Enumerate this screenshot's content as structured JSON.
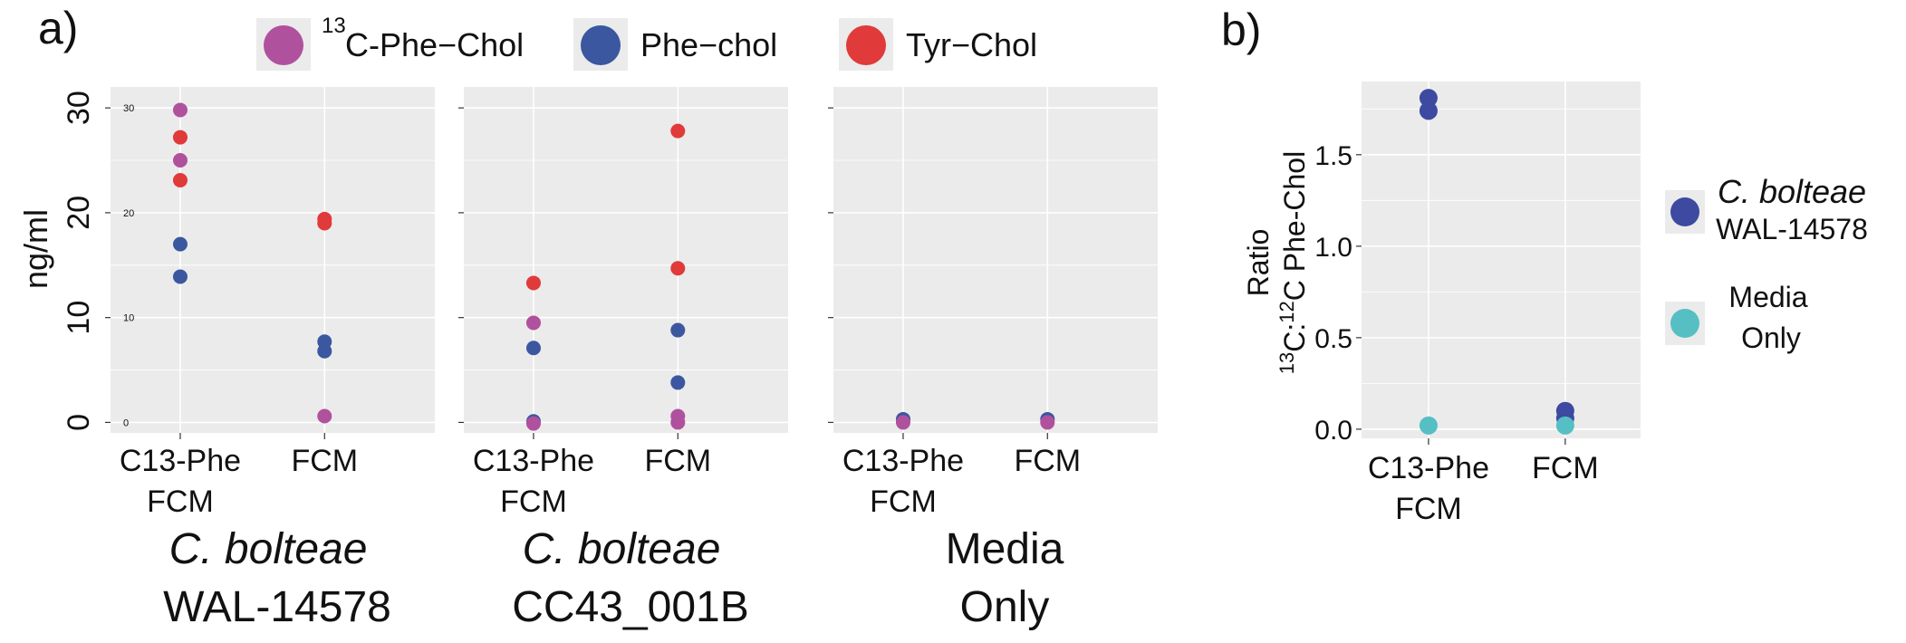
{
  "panel_labels": {
    "a": "a)",
    "b": "b)"
  },
  "colors": {
    "c13_phe_chol": "#b0519e",
    "phe_chol": "#3a57a0",
    "tyr_chol": "#e03a3a",
    "wal": "#3d4aa0",
    "media": "#55bfc4"
  },
  "chart_data": [
    {
      "type": "scatter",
      "panel": "a)",
      "ylabel": "ng/ml",
      "ylim": [
        -1,
        32
      ],
      "yticks": [
        "0",
        "10",
        "20",
        "30"
      ],
      "small_yticks": [
        "30",
        "20",
        "10",
        "0"
      ],
      "categories": [
        "C13-Phe FCM",
        "FCM"
      ],
      "category_labels": [
        [
          "C13-Phe",
          "FCM"
        ],
        [
          "FCM"
        ]
      ],
      "legend": {
        "position": "top",
        "entries": [
          {
            "key": "c13",
            "pre": "13",
            "label": "C-Phe−Chol",
            "color": "#b0519e"
          },
          {
            "key": "phe",
            "pre": "",
            "label": "Phe−chol",
            "color": "#3a57a0"
          },
          {
            "key": "tyr",
            "pre": "",
            "label": "Tyr−Chol",
            "color": "#e03a3a"
          }
        ]
      },
      "facets": [
        {
          "label_italic": "C. bolteae",
          "label_line2": "WAL-14578",
          "points": [
            {
              "series": "c13",
              "x": "C13-Phe FCM",
              "y": 29.8
            },
            {
              "series": "c13",
              "x": "C13-Phe FCM",
              "y": 25.0
            },
            {
              "series": "tyr",
              "x": "C13-Phe FCM",
              "y": 27.2
            },
            {
              "series": "tyr",
              "x": "C13-Phe FCM",
              "y": 23.1
            },
            {
              "series": "phe",
              "x": "C13-Phe FCM",
              "y": 17.0
            },
            {
              "series": "phe",
              "x": "C13-Phe FCM",
              "y": 13.9
            },
            {
              "series": "tyr",
              "x": "FCM",
              "y": 19.4
            },
            {
              "series": "tyr",
              "x": "FCM",
              "y": 19.0
            },
            {
              "series": "phe",
              "x": "FCM",
              "y": 7.7
            },
            {
              "series": "phe",
              "x": "FCM",
              "y": 6.8
            },
            {
              "series": "c13",
              "x": "FCM",
              "y": 0.6
            }
          ]
        },
        {
          "label_italic": "C. bolteae",
          "label_line2": "CC43_001B",
          "points": [
            {
              "series": "tyr",
              "x": "C13-Phe FCM",
              "y": 13.3
            },
            {
              "series": "c13",
              "x": "C13-Phe FCM",
              "y": 9.5
            },
            {
              "series": "phe",
              "x": "C13-Phe FCM",
              "y": 7.1
            },
            {
              "series": "phe",
              "x": "C13-Phe FCM",
              "y": 0.1
            },
            {
              "series": "c13",
              "x": "C13-Phe FCM",
              "y": -0.1
            },
            {
              "series": "tyr",
              "x": "FCM",
              "y": 27.8
            },
            {
              "series": "tyr",
              "x": "FCM",
              "y": 14.7
            },
            {
              "series": "phe",
              "x": "FCM",
              "y": 8.8
            },
            {
              "series": "phe",
              "x": "FCM",
              "y": 3.8
            },
            {
              "series": "c13",
              "x": "FCM",
              "y": 0.6
            },
            {
              "series": "c13",
              "x": "FCM",
              "y": 0.0
            }
          ]
        },
        {
          "label_italic": "",
          "label_line1_plain": "Media",
          "label_line2": "Only",
          "points": [
            {
              "series": "phe",
              "x": "C13-Phe FCM",
              "y": 0.3
            },
            {
              "series": "c13",
              "x": "C13-Phe FCM",
              "y": 0.0
            },
            {
              "series": "phe",
              "x": "FCM",
              "y": 0.3
            },
            {
              "series": "c13",
              "x": "FCM",
              "y": 0.0
            }
          ]
        }
      ]
    },
    {
      "type": "scatter",
      "panel": "b)",
      "ylabel_line1": "Ratio",
      "ylabel_line2_parts": {
        "sup1": "13",
        "a": "C:",
        "sup2": "12",
        "b": "C Phe-Chol"
      },
      "ylim": [
        -0.05,
        1.9
      ],
      "yticks": [
        "0.0",
        "0.5",
        "1.0",
        "1.5"
      ],
      "categories": [
        "C13-Phe FCM",
        "FCM"
      ],
      "category_labels": [
        [
          "C13-Phe",
          "FCM"
        ],
        [
          "FCM"
        ]
      ],
      "legend": {
        "position": "right",
        "entries": [
          {
            "key": "wal",
            "label_italic": "C. bolteae",
            "label_line2": "WAL-14578",
            "color": "#3d4aa0"
          },
          {
            "key": "media",
            "label_line1": "Media",
            "label_line2": "Only",
            "color": "#55bfc4"
          }
        ]
      },
      "points": [
        {
          "series": "wal",
          "x": "C13-Phe FCM",
          "y": 1.81
        },
        {
          "series": "wal",
          "x": "C13-Phe FCM",
          "y": 1.74
        },
        {
          "series": "media",
          "x": "C13-Phe FCM",
          "y": 0.02
        },
        {
          "series": "wal",
          "x": "FCM",
          "y": 0.1
        },
        {
          "series": "wal",
          "x": "FCM",
          "y": 0.06
        },
        {
          "series": "media",
          "x": "FCM",
          "y": 0.02
        }
      ]
    }
  ]
}
